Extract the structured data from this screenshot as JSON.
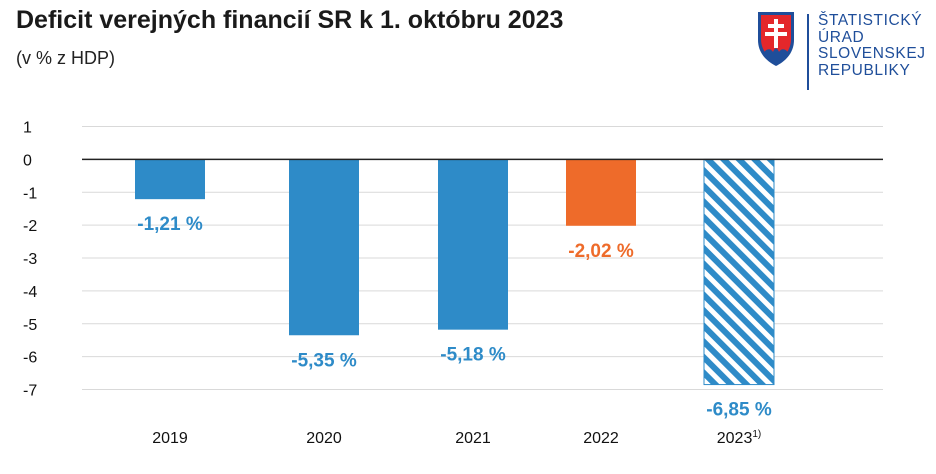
{
  "header": {
    "title": "Deficit verejných financií SR k 1. októbru 2023",
    "subtitle": "(v % z HDP)"
  },
  "logo": {
    "lines": [
      "ŠTATISTICKÝ",
      "ÚRAD",
      "SLOVENSKEJ",
      "REPUBLIKY"
    ],
    "icon": "slovak-coat-of-arms-icon"
  },
  "colors": {
    "blue": "#2e8bc8",
    "orange": "#ee6b2a",
    "grid": "#d9d9d9",
    "zero_line": "#222222"
  },
  "chart_data": {
    "type": "bar",
    "title": "Deficit verejných financií SR k 1. októbru 2023",
    "subtitle": "(v % z HDP)",
    "xlabel": "",
    "ylabel": "",
    "ylim": [
      -7,
      1
    ],
    "yticks": [
      "1",
      "0",
      "-1",
      "-2",
      "-3",
      "-4",
      "-5",
      "-6",
      "-7"
    ],
    "grid": true,
    "categories": [
      "2019",
      "2020",
      "2021",
      "2022",
      "2023"
    ],
    "category_footnotes": [
      "",
      "",
      "",
      "",
      "1)"
    ],
    "values": [
      -1.21,
      -5.35,
      -5.18,
      -2.02,
      -6.85
    ],
    "data_labels": [
      "-1,21 %",
      "-5,35 %",
      "-5,18 %",
      "-2,02 %",
      "-6,85 %"
    ],
    "bar_styles": [
      "solid",
      "solid",
      "solid",
      "solid",
      "hatched"
    ],
    "bar_colors": [
      "#2e8bc8",
      "#2e8bc8",
      "#2e8bc8",
      "#ee6b2a",
      "#2e8bc8"
    ]
  }
}
